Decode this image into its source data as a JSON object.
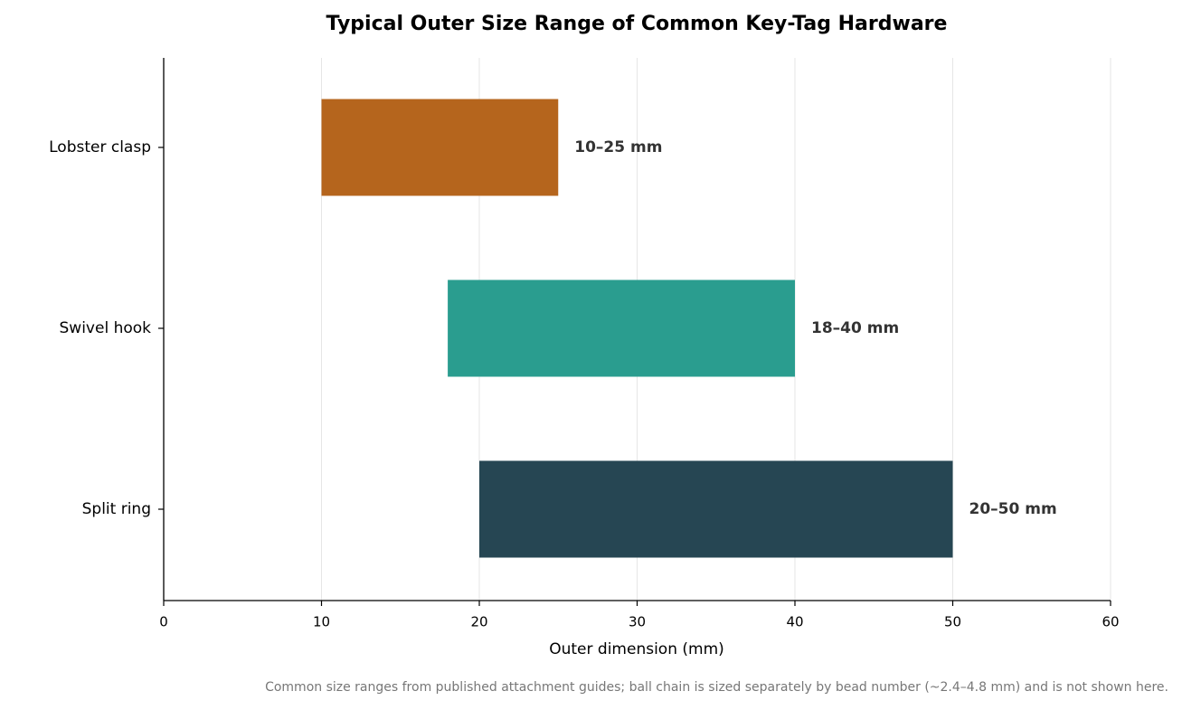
{
  "chart_data": {
    "type": "range-bar",
    "title": "Typical Outer Size Range of Common Key-Tag Hardware",
    "x_label": "Outer dimension (mm)",
    "footnote": "Common size ranges from published attachment guides; ball chain is sized separately by bead number (~2.4–4.8 mm) and is not shown here.",
    "categories": [
      "Lobster clasp",
      "Swivel hook",
      "Split ring"
    ],
    "low": [
      10,
      18,
      20
    ],
    "high": [
      25,
      40,
      50
    ],
    "value_labels": [
      "10–25 mm",
      "18–40 mm",
      "20–50 mm"
    ],
    "colors": [
      "#b5651d",
      "#2a9d8f",
      "#264653"
    ],
    "xlim": [
      0,
      60
    ],
    "xticks": [
      0,
      10,
      20,
      30,
      40,
      50,
      60
    ],
    "grid": true
  }
}
